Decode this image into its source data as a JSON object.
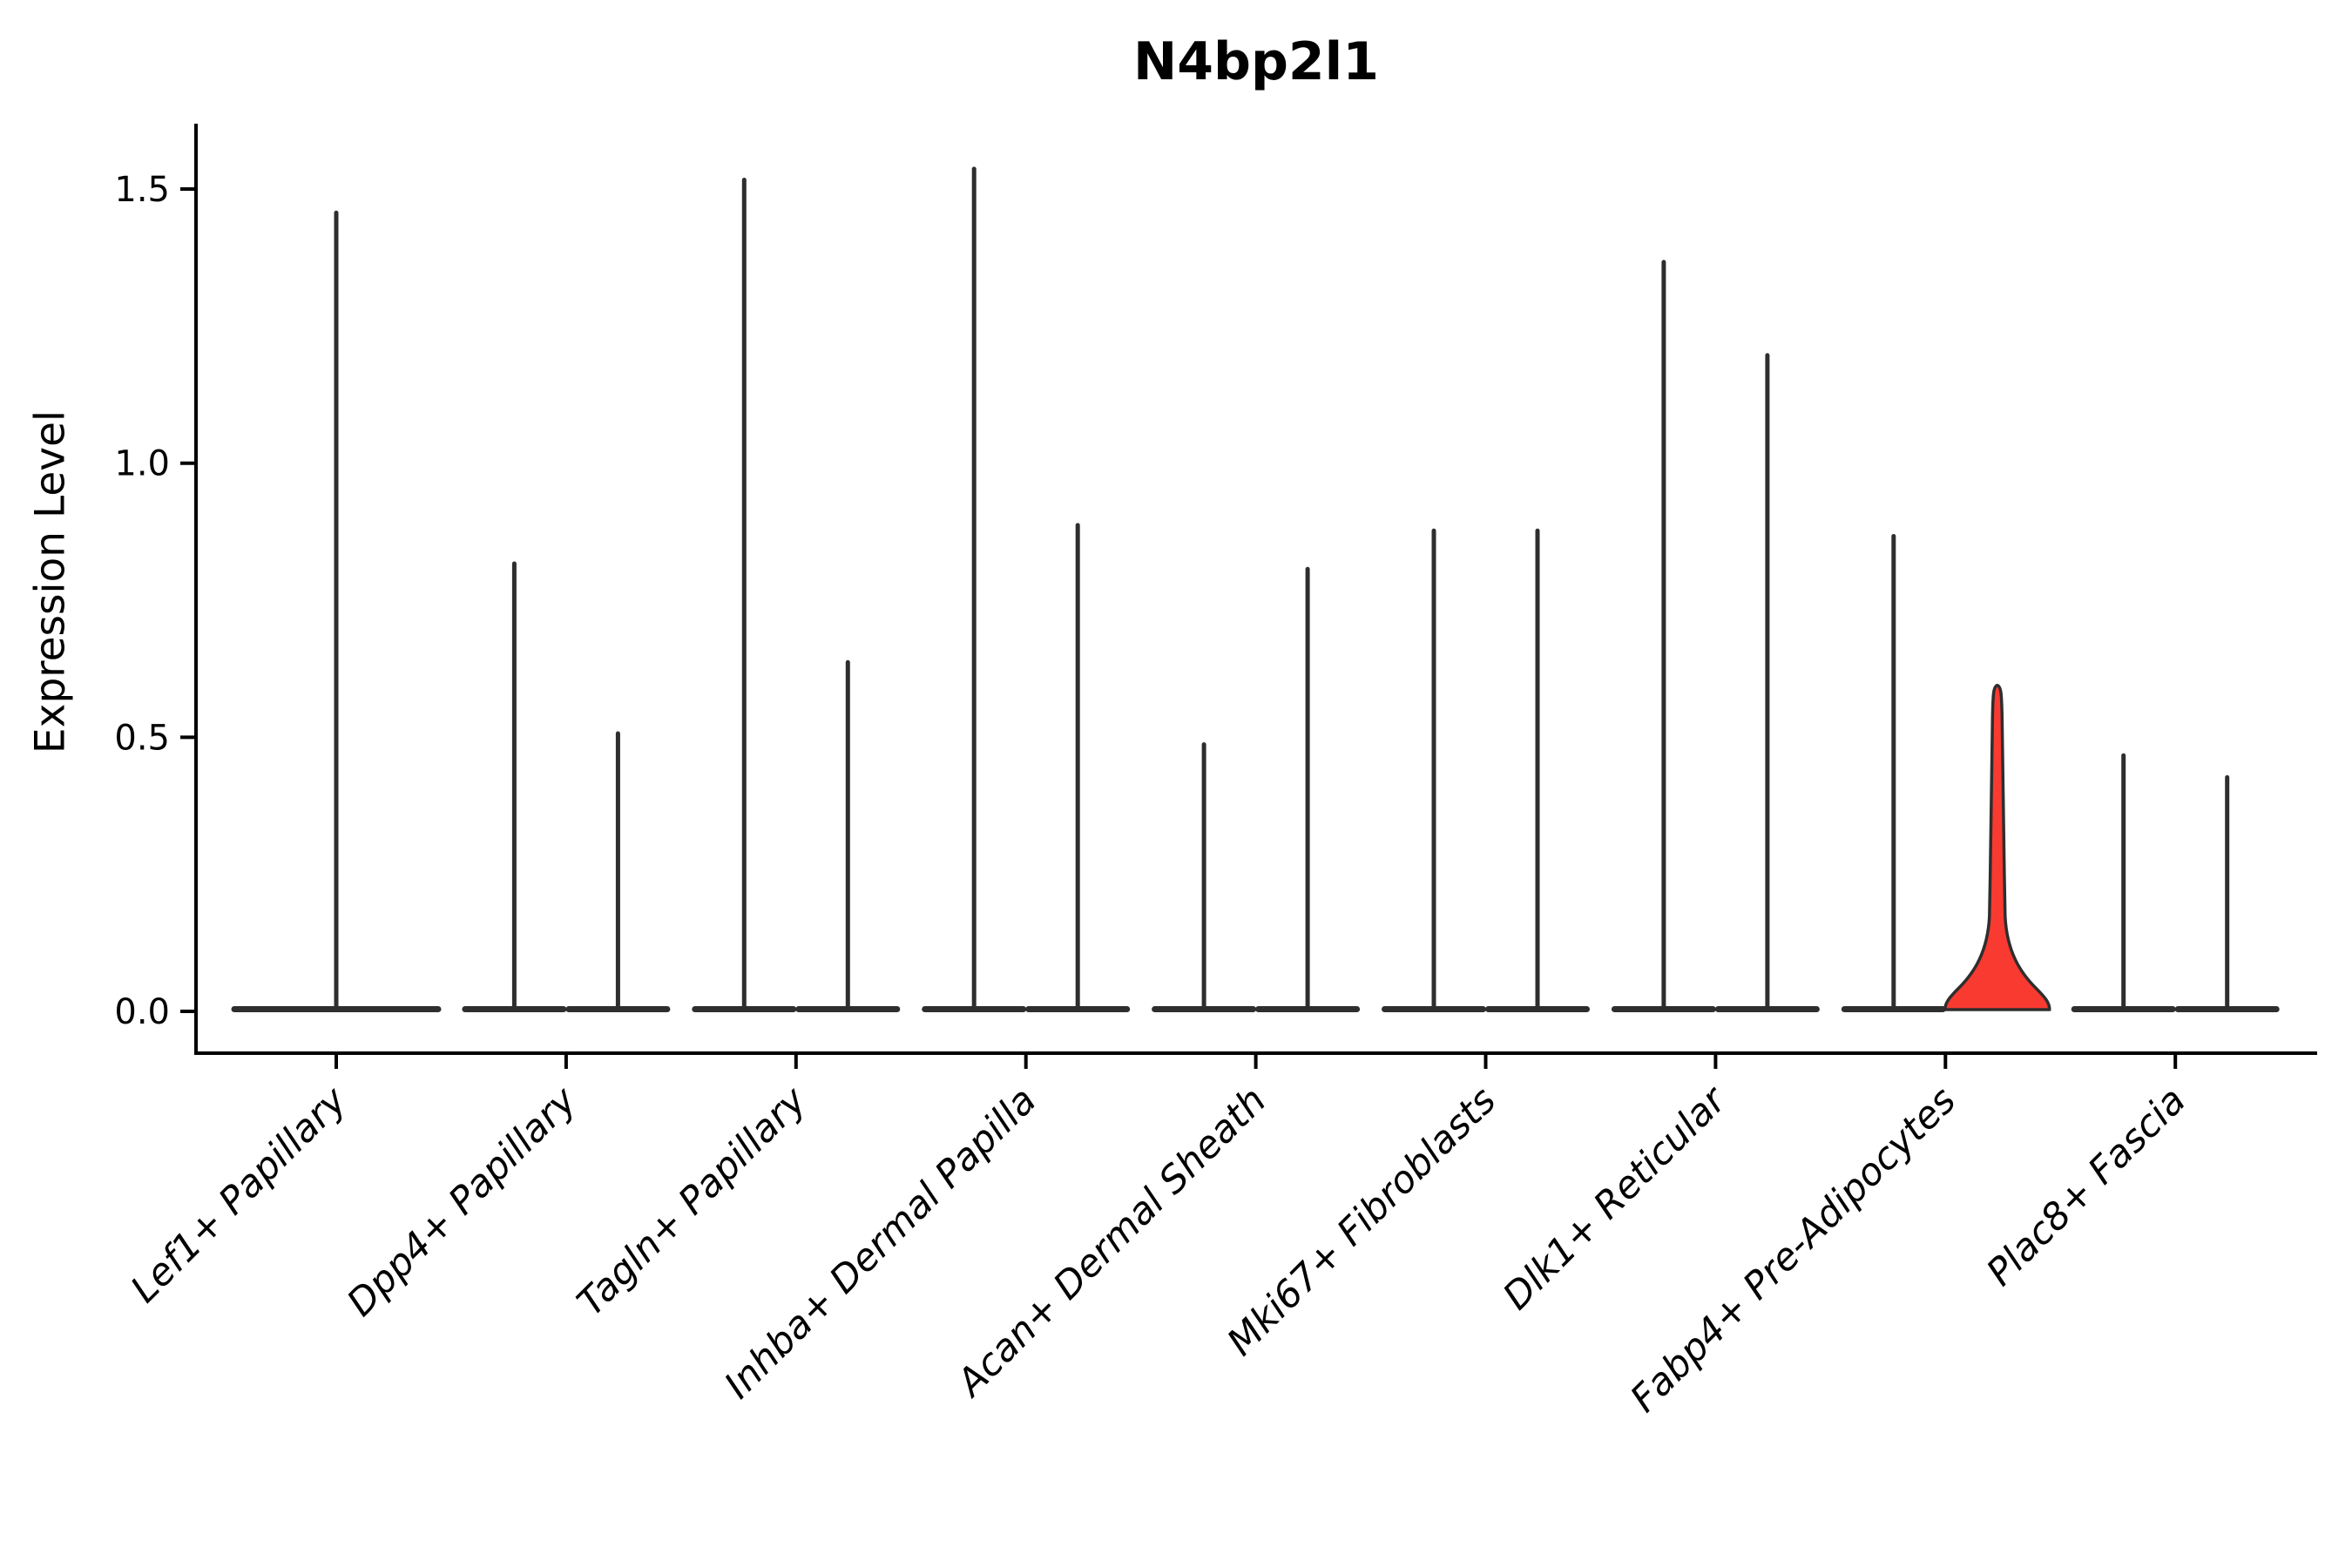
{
  "figure": {
    "title": "N4bp2l1",
    "y_axis_label": "Expression Level"
  },
  "chart_data": {
    "type": "violin",
    "title": "N4bp2l1",
    "xlabel": "",
    "ylabel": "Expression Level",
    "ylim": [
      0,
      1.62
    ],
    "grid": false,
    "legend_position": "none",
    "yticks": [
      {
        "value": 0.0,
        "label": "0.0"
      },
      {
        "value": 0.5,
        "label": "0.5"
      },
      {
        "value": 1.0,
        "label": "1.0"
      },
      {
        "value": 1.5,
        "label": "1.5"
      }
    ],
    "categories": [
      "Lef1+ Papillary",
      "Dpp4+ Papillary",
      "Tagln+ Papillary",
      "Inhba+ Dermal Papilla",
      "Acan+ Dermal Sheath",
      "Mki67+ Fibroblasts",
      "Dlk1+ Reticular",
      "Fabp4+ Pre-Adipocytes",
      "Plac8+ Fascia"
    ],
    "groups": [
      {
        "category": "Lef1+ Papillary",
        "violins": [
          {
            "max_expression": 1.46,
            "highlighted": false
          }
        ]
      },
      {
        "category": "Dpp4+ Papillary",
        "violins": [
          {
            "max_expression": 0.82,
            "highlighted": false
          },
          {
            "max_expression": 0.51,
            "highlighted": false
          }
        ]
      },
      {
        "category": "Tagln+ Papillary",
        "violins": [
          {
            "max_expression": 1.52,
            "highlighted": false
          },
          {
            "max_expression": 0.64,
            "highlighted": false
          }
        ]
      },
      {
        "category": "Inhba+ Dermal Papilla",
        "violins": [
          {
            "max_expression": 1.54,
            "highlighted": false
          },
          {
            "max_expression": 0.89,
            "highlighted": false
          }
        ]
      },
      {
        "category": "Acan+ Dermal Sheath",
        "violins": [
          {
            "max_expression": 0.49,
            "highlighted": false
          },
          {
            "max_expression": 0.81,
            "highlighted": false
          }
        ]
      },
      {
        "category": "Mki67+ Fibroblasts",
        "violins": [
          {
            "max_expression": 0.88,
            "highlighted": false
          },
          {
            "max_expression": 0.88,
            "highlighted": false
          }
        ]
      },
      {
        "category": "Dlk1+ Reticular",
        "violins": [
          {
            "max_expression": 1.37,
            "highlighted": false
          },
          {
            "max_expression": 1.2,
            "highlighted": false
          }
        ]
      },
      {
        "category": "Fabp4+ Pre-Adipocytes",
        "violins": [
          {
            "max_expression": 0.87,
            "highlighted": false
          },
          {
            "max_expression": 0.59,
            "highlighted": true
          }
        ]
      },
      {
        "category": "Plac8+ Fascia",
        "violins": [
          {
            "max_expression": 0.47,
            "highlighted": false
          },
          {
            "max_expression": 0.43,
            "highlighted": false
          }
        ]
      }
    ],
    "colors": {
      "violin_outline": "#2e2e2e",
      "highlight_fill": "#f93a31",
      "axis": "#000000",
      "text": "#000000",
      "background": "#ffffff"
    }
  }
}
